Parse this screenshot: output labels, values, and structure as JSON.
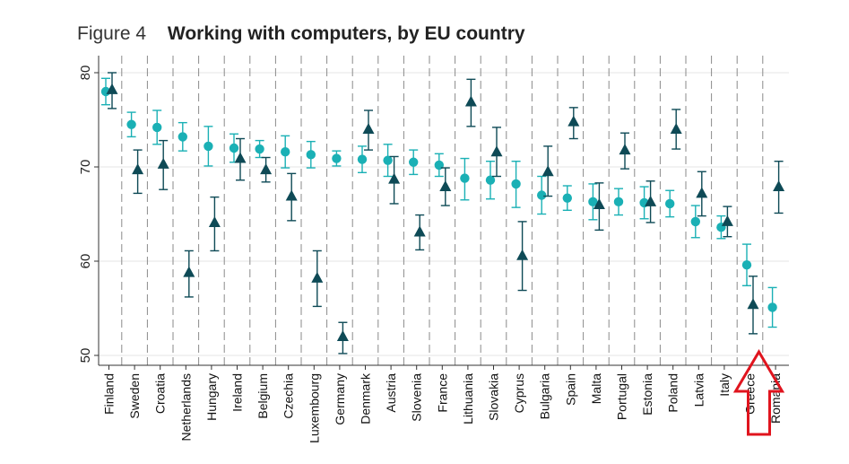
{
  "figure": {
    "label": "Figure 4",
    "title": "Working with computers, by EU country"
  },
  "chart_data": {
    "type": "scatter",
    "title": "Working with computers, by EU country",
    "xlabel": "",
    "ylabel": "",
    "ylim": [
      48.5,
      81.5
    ],
    "yticks": [
      50,
      60,
      70,
      80
    ],
    "grid": true,
    "categories": [
      "Finland",
      "Sweden",
      "Croatia",
      "Netherlands",
      "Hungary",
      "Ireland",
      "Belgium",
      "Czechia",
      "Luxembourg",
      "Germany",
      "Denmark",
      "Austria",
      "Slovenia",
      "France",
      "Lithuania",
      "Slovakia",
      "Cyprus",
      "Bulgaria",
      "Spain",
      "Malta",
      "Portugal",
      "Estonia",
      "Poland",
      "Latvia",
      "Italy",
      "Greece",
      "Romania"
    ],
    "series": [
      {
        "marker": "circle",
        "color": "#1ab0b5",
        "values": [
          78.0,
          74.5,
          74.2,
          73.2,
          72.2,
          72.0,
          71.9,
          71.6,
          71.3,
          70.9,
          70.8,
          70.7,
          70.5,
          70.2,
          68.8,
          68.6,
          68.2,
          67.0,
          66.7,
          66.3,
          66.3,
          66.2,
          66.1,
          64.2,
          63.6,
          59.6,
          55.1
        ],
        "lower": [
          76.6,
          73.2,
          72.4,
          71.7,
          70.1,
          70.5,
          71.0,
          69.9,
          69.9,
          70.1,
          69.4,
          69.0,
          69.2,
          69.0,
          66.5,
          66.6,
          65.7,
          65.0,
          65.4,
          64.4,
          64.9,
          64.5,
          64.7,
          62.5,
          62.4,
          57.4,
          53.0
        ],
        "upper": [
          79.4,
          75.8,
          76.0,
          74.7,
          74.3,
          73.5,
          72.8,
          73.3,
          72.7,
          71.7,
          72.2,
          72.4,
          71.8,
          71.4,
          70.9,
          70.6,
          70.6,
          69.0,
          68.0,
          68.2,
          67.7,
          67.9,
          67.5,
          65.9,
          64.8,
          61.8,
          57.2
        ]
      },
      {
        "marker": "triangle",
        "color": "#0e4a56",
        "values": [
          78.2,
          69.7,
          70.3,
          58.8,
          64.1,
          70.9,
          69.7,
          66.9,
          58.2,
          52.0,
          74.0,
          68.7,
          63.1,
          67.9,
          76.9,
          71.6,
          60.6,
          69.5,
          74.8,
          66.0,
          71.8,
          66.3,
          74.0,
          67.2,
          64.2,
          55.4,
          67.9
        ],
        "lower": [
          76.2,
          67.2,
          67.6,
          56.2,
          61.1,
          68.6,
          68.4,
          64.3,
          55.2,
          50.2,
          71.8,
          66.1,
          61.2,
          65.9,
          74.3,
          69.0,
          56.9,
          66.9,
          73.0,
          63.3,
          69.8,
          64.1,
          71.9,
          64.8,
          62.6,
          52.3,
          65.1
        ],
        "upper": [
          80.0,
          71.8,
          72.8,
          61.1,
          66.8,
          73.0,
          71.0,
          69.3,
          61.1,
          53.5,
          76.0,
          71.1,
          64.9,
          69.9,
          79.3,
          74.2,
          64.2,
          72.2,
          76.3,
          68.3,
          73.6,
          68.5,
          76.1,
          69.5,
          65.8,
          58.4,
          70.6
        ]
      }
    ],
    "annotation": {
      "type": "arrow",
      "color": "#e0141e",
      "target": "Greece"
    }
  }
}
